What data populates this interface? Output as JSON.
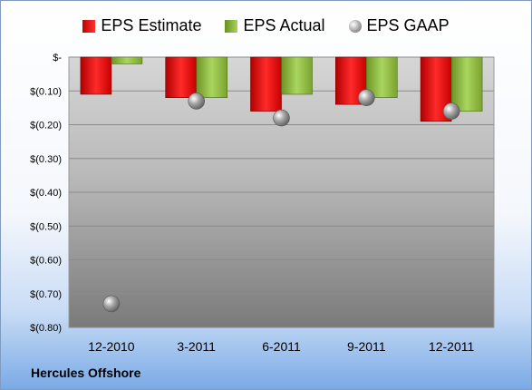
{
  "company": "Hercules Offshore",
  "legend": {
    "estimate": "EPS Estimate",
    "actual": "EPS Actual",
    "gaap": "EPS GAAP"
  },
  "colors": {
    "estimate": "#e02020",
    "actual": "#8cb43a",
    "gaap": "#a0a0a0"
  },
  "chart_data": {
    "type": "bar",
    "categories": [
      "12-2010",
      "3-2011",
      "6-2011",
      "9-2011",
      "12-2011"
    ],
    "series": [
      {
        "name": "EPS Estimate",
        "values": [
          -0.11,
          -0.12,
          -0.16,
          -0.14,
          -0.19
        ]
      },
      {
        "name": "EPS Actual",
        "values": [
          -0.02,
          -0.12,
          -0.11,
          -0.12,
          -0.16
        ]
      },
      {
        "name": "EPS GAAP",
        "type": "scatter",
        "values": [
          -0.73,
          -0.13,
          -0.18,
          -0.12,
          -0.16
        ]
      }
    ],
    "y_ticks": [
      "$-",
      "$(0.10)",
      "$(0.20)",
      "$(0.30)",
      "$(0.40)",
      "$(0.50)",
      "$(0.60)",
      "$(0.70)",
      "$(0.80)"
    ],
    "ylim": [
      -0.8,
      0
    ],
    "grid": true,
    "legend_position": "top"
  }
}
